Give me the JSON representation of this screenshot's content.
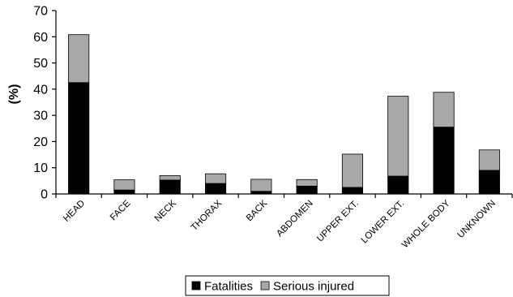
{
  "chart_data": {
    "type": "bar",
    "stacked": true,
    "title": "",
    "xlabel": "",
    "ylabel": "(%)",
    "ylim": [
      0,
      70
    ],
    "yticks": [
      0,
      10,
      20,
      30,
      40,
      50,
      60,
      70
    ],
    "grid": false,
    "legend_position": "bottom-center",
    "categories": [
      "HEAD",
      "FACE",
      "NECK",
      "THORAX",
      "BACK",
      "ABDOMEN",
      "UPPER EXT.",
      "LOWER EXT.",
      "WHOLE BODY",
      "UNKNOWN"
    ],
    "series": [
      {
        "name": "Fatalities",
        "color": "#000000",
        "values": [
          42.5,
          1.5,
          5.3,
          4.0,
          1.0,
          3.0,
          2.5,
          6.8,
          25.5,
          9.0
        ]
      },
      {
        "name": "Serious injured",
        "color": "#a8a8a8",
        "values": [
          18.3,
          3.9,
          1.7,
          3.7,
          4.6,
          2.5,
          12.7,
          30.5,
          13.3,
          7.8
        ]
      }
    ]
  }
}
